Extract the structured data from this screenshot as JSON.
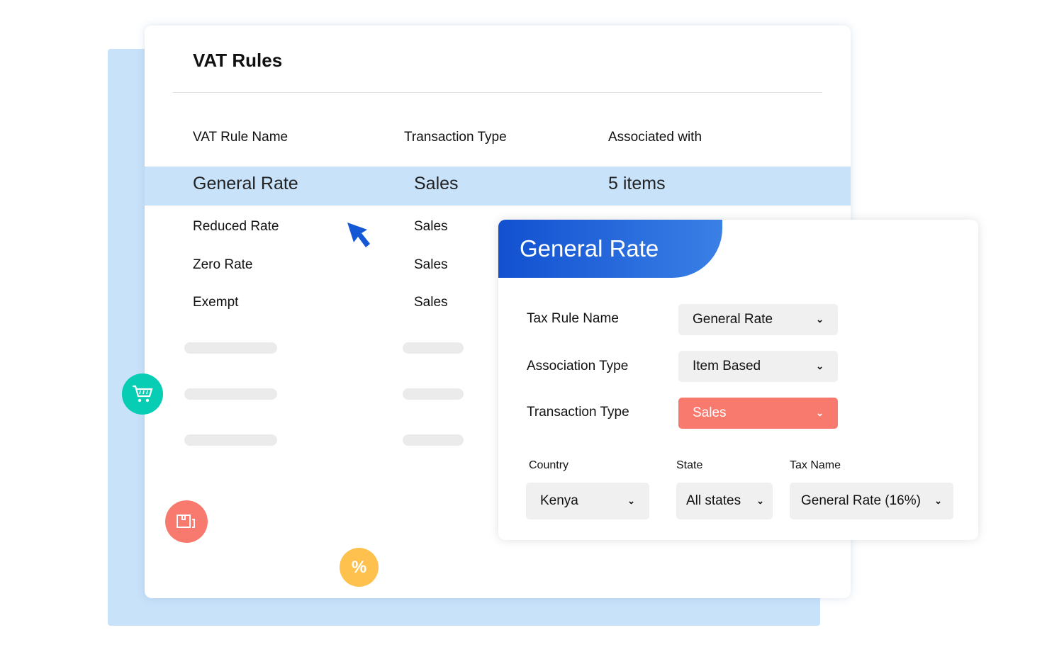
{
  "title": "VAT Rules",
  "columns": [
    "VAT Rule Name",
    "Transaction Type",
    "Associated with"
  ],
  "selected": {
    "name": "General Rate",
    "type": "Sales",
    "assoc": "5 items"
  },
  "rows": [
    {
      "name": "Reduced Rate",
      "type": "Sales"
    },
    {
      "name": "Zero Rate",
      "type": "Sales"
    },
    {
      "name": "Exempt",
      "type": "Sales"
    }
  ],
  "panel": {
    "title": "General Rate",
    "tax_rule_name": {
      "label": "Tax Rule Name",
      "value": "General Rate"
    },
    "association_type": {
      "label": "Association Type",
      "value": "Item Based"
    },
    "transaction_type": {
      "label": "Transaction Type",
      "value": "Sales"
    },
    "country": {
      "label": "Country",
      "value": "Kenya"
    },
    "state": {
      "label": "State",
      "value": "All states"
    },
    "tax_name": {
      "label": "Tax Name",
      "value": "General Rate (16%)"
    }
  },
  "badges": {
    "percent": "%"
  },
  "colors": {
    "accent": "#1250d0",
    "highlight": "#c8e2fa",
    "sales": "#f87a6e",
    "cart": "#06cdb3",
    "box": "#f87a6e",
    "percent": "#fec14e"
  }
}
